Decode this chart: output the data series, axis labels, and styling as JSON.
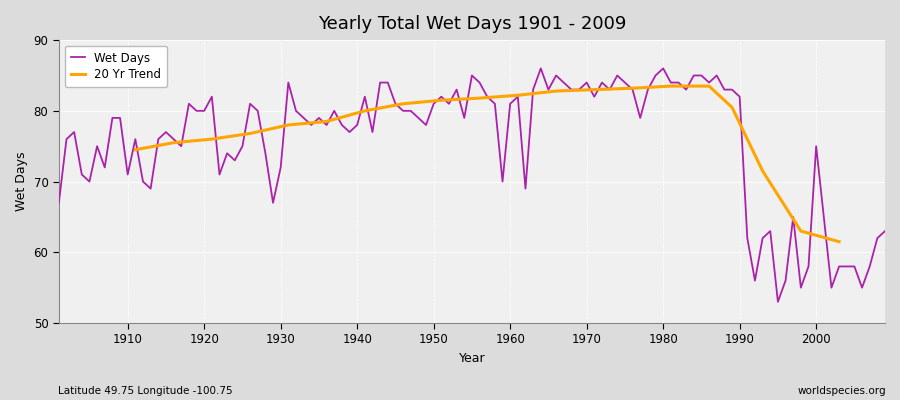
{
  "title": "Yearly Total Wet Days 1901 - 2009",
  "xlabel": "Year",
  "ylabel": "Wet Days",
  "subtitle": "Latitude 49.75 Longitude -100.75",
  "watermark": "worldspecies.org",
  "wet_days_color": "#AA22AA",
  "trend_color": "#FFA500",
  "bg_color": "#DCDCDC",
  "plot_bg_color": "#F0F0F0",
  "years": [
    1901,
    1902,
    1903,
    1904,
    1905,
    1906,
    1907,
    1908,
    1909,
    1910,
    1911,
    1912,
    1913,
    1914,
    1915,
    1916,
    1917,
    1918,
    1919,
    1920,
    1921,
    1922,
    1923,
    1924,
    1925,
    1926,
    1927,
    1928,
    1929,
    1930,
    1931,
    1932,
    1933,
    1934,
    1935,
    1936,
    1937,
    1938,
    1939,
    1940,
    1941,
    1942,
    1943,
    1944,
    1945,
    1946,
    1947,
    1948,
    1949,
    1950,
    1951,
    1952,
    1953,
    1954,
    1955,
    1956,
    1957,
    1958,
    1959,
    1960,
    1961,
    1962,
    1963,
    1964,
    1965,
    1966,
    1967,
    1968,
    1969,
    1970,
    1971,
    1972,
    1973,
    1974,
    1975,
    1976,
    1977,
    1978,
    1979,
    1980,
    1981,
    1982,
    1983,
    1984,
    1985,
    1986,
    1987,
    1988,
    1989,
    1990,
    1991,
    1992,
    1993,
    1994,
    1995,
    1996,
    1997,
    1998,
    1999,
    2000,
    2001,
    2002,
    2003,
    2004,
    2005,
    2006,
    2007,
    2008,
    2009
  ],
  "wet_days": [
    67,
    76,
    77,
    71,
    70,
    75,
    72,
    79,
    79,
    71,
    76,
    70,
    69,
    76,
    77,
    76,
    75,
    81,
    80,
    80,
    82,
    71,
    74,
    73,
    75,
    81,
    80,
    74,
    67,
    72,
    84,
    80,
    79,
    78,
    79,
    78,
    80,
    78,
    77,
    78,
    82,
    77,
    84,
    84,
    81,
    80,
    80,
    79,
    78,
    81,
    82,
    81,
    83,
    79,
    85,
    84,
    82,
    81,
    70,
    81,
    82,
    69,
    83,
    86,
    83,
    85,
    84,
    83,
    83,
    84,
    82,
    84,
    83,
    85,
    84,
    83,
    79,
    83,
    85,
    86,
    84,
    84,
    83,
    85,
    85,
    84,
    85,
    83,
    83,
    82,
    62,
    56,
    62,
    63,
    53,
    56,
    65,
    55,
    58,
    75,
    65,
    55,
    58,
    58,
    58,
    55,
    58,
    62,
    63
  ],
  "trend_years": [
    1911,
    1916,
    1921,
    1926,
    1931,
    1936,
    1941,
    1946,
    1951,
    1956,
    1961,
    1966,
    1971,
    1976,
    1981,
    1986,
    1989,
    1993,
    1998,
    2003
  ],
  "trend_values": [
    74.5,
    75.5,
    76.0,
    76.8,
    78.0,
    78.5,
    80.0,
    81.0,
    81.5,
    81.8,
    82.2,
    82.8,
    83.0,
    83.2,
    83.5,
    83.5,
    80.5,
    71.5,
    63.0,
    61.5
  ],
  "ylim": [
    50,
    90
  ],
  "xlim": [
    1901,
    2009
  ],
  "yticks": [
    50,
    60,
    70,
    80,
    90
  ],
  "xticks": [
    1910,
    1920,
    1930,
    1940,
    1950,
    1960,
    1970,
    1980,
    1990,
    2000
  ]
}
